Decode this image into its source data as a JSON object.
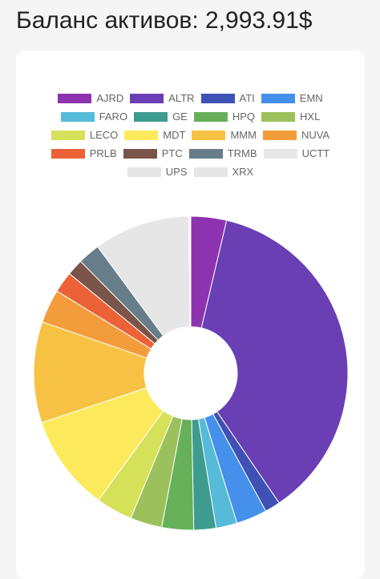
{
  "header": {
    "title": "Баланс активов: 2,993.91$"
  },
  "legend_rows": [
    [
      "AJRD",
      "ALTR",
      "ATI",
      "EMN"
    ],
    [
      "FARO",
      "GE",
      "HPQ",
      "HXL"
    ],
    [
      "LECO",
      "MDT",
      "MMM",
      "NUVA"
    ],
    [
      "PRLB",
      "PTC",
      "TRMB",
      "UCTT"
    ],
    [
      "UPS",
      "XRX"
    ]
  ],
  "chart_data": {
    "type": "pie",
    "variant": "doughnut",
    "legend_placement": "top",
    "categories": [
      "AJRD",
      "ALTR",
      "ATI",
      "EMN",
      "FARO",
      "GE",
      "HPQ",
      "HXL",
      "LECO",
      "MDT",
      "MMM",
      "NUVA",
      "PRLB",
      "PTC",
      "TRMB",
      "UCTT",
      "UPS",
      "XRX"
    ],
    "values": [
      3.7,
      37.2,
      1.6,
      3.2,
      2.2,
      2.3,
      3.3,
      3.3,
      3.8,
      10.0,
      10.5,
      3.5,
      2.2,
      1.7,
      2.3,
      10.0,
      0.1,
      0.1
    ],
    "colors": [
      "#8e33b0",
      "#6a3fb4",
      "#3f51b5",
      "#4490ea",
      "#55bbd8",
      "#3e9b8f",
      "#66b05a",
      "#9cc15c",
      "#d6e15a",
      "#fcea5c",
      "#f7c243",
      "#f39c3b",
      "#ec6236",
      "#7a5449",
      "#677d8a",
      "#e6e6e6",
      "#e6e6e6",
      "#e6e6e6"
    ]
  }
}
